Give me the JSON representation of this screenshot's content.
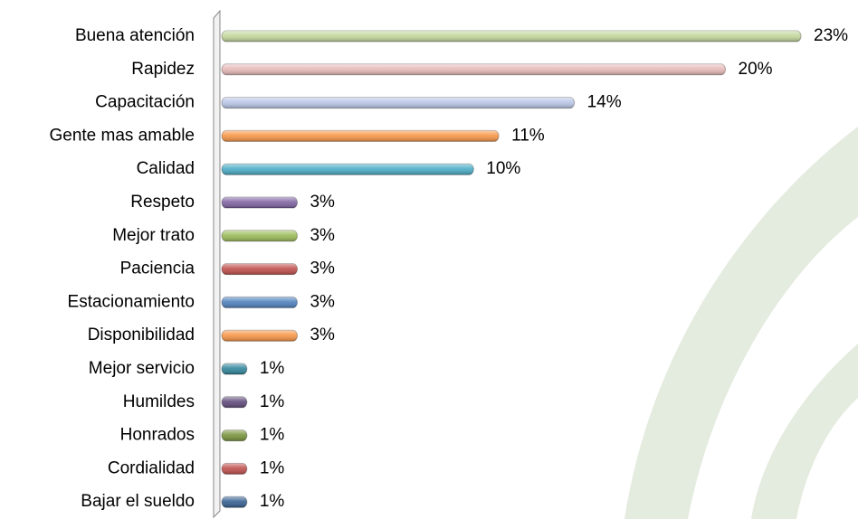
{
  "chart_data": {
    "type": "bar",
    "orientation": "horizontal",
    "categories": [
      "Buena atención",
      "Rapidez",
      "Capacitación",
      "Gente mas amable",
      "Calidad",
      "Respeto",
      "Mejor trato",
      "Paciencia",
      "Estacionamiento",
      "Disponibilidad",
      "Mejor servicio",
      "Humildes",
      "Honrados",
      "Cordialidad",
      "Bajar el sueldo"
    ],
    "values": [
      23,
      20,
      14,
      11,
      10,
      3,
      3,
      3,
      3,
      3,
      1,
      1,
      1,
      1,
      1
    ],
    "value_labels": [
      "23%",
      "20%",
      "14%",
      "11%",
      "10%",
      "3%",
      "3%",
      "3%",
      "3%",
      "3%",
      "1%",
      "1%",
      "1%",
      "1%",
      "1%"
    ],
    "colors": [
      "#c3d69b",
      "#e6b9b8",
      "#b9c6e6",
      "#f79646",
      "#4bacc6",
      "#8064a2",
      "#9bbb59",
      "#c0504d",
      "#4f81bd",
      "#f79646",
      "#31859c",
      "#604a7b",
      "#77933c",
      "#c0504d",
      "#376092"
    ]
  }
}
